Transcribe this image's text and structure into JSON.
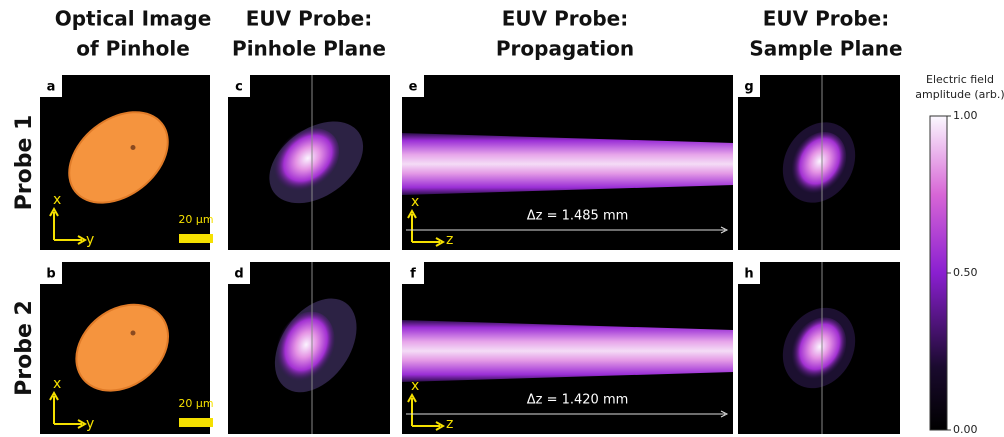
{
  "columns": [
    {
      "title": [
        "Optical Image",
        "of Pinhole"
      ]
    },
    {
      "title": [
        "EUV Probe:",
        "Pinhole Plane"
      ]
    },
    {
      "title": [
        "EUV Probe:",
        "Propagation"
      ]
    },
    {
      "title": [
        "EUV Probe:",
        "Sample Plane"
      ]
    }
  ],
  "rows": [
    {
      "label": "Probe 1",
      "panel_labels": [
        "a",
        "c",
        "e",
        "g"
      ],
      "optical_axes": [
        "x",
        "y"
      ],
      "scale_bar": "20 µm",
      "propagation_axes": [
        "x",
        "z"
      ],
      "propagation_distance": "Δz = 1.485 mm"
    },
    {
      "label": "Probe 2",
      "panel_labels": [
        "b",
        "d",
        "f",
        "h"
      ],
      "optical_axes": [
        "x",
        "y"
      ],
      "scale_bar": "20 µm",
      "propagation_axes": [
        "x",
        "z"
      ],
      "propagation_distance": "Δz = 1.420 mm"
    }
  ],
  "colorbar": {
    "title": [
      "Electric field",
      "amplitude (arb.)"
    ],
    "range": [
      0,
      1
    ],
    "ticks": [
      {
        "value": 1,
        "label": "1.00"
      },
      {
        "value": 0.5,
        "label": "0.50"
      },
      {
        "value": 0,
        "label": "0.00"
      }
    ]
  }
}
